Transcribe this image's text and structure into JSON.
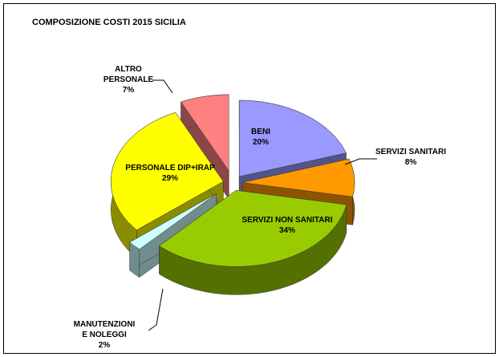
{
  "chart_data": {
    "type": "pie3d",
    "title": "COMPOSIZIONE COSTI 2015 SICILIA",
    "categories": [
      "BENI",
      "SERVIZI SANITARI",
      "SERVIZI NON SANITARI",
      "MANUTENZIONI E NOLEGGI",
      "PERSONALE DIP+IRAP",
      "ALTRO PERSONALE"
    ],
    "values": [
      20,
      8,
      34,
      2,
      29,
      7
    ],
    "value_labels": [
      "20%",
      "8%",
      "34%",
      "2%",
      "29%",
      "7%"
    ],
    "colors": [
      "#9999ff",
      "#ff9900",
      "#99cc00",
      "#ccffff",
      "#ffff00",
      "#ff8080"
    ]
  }
}
